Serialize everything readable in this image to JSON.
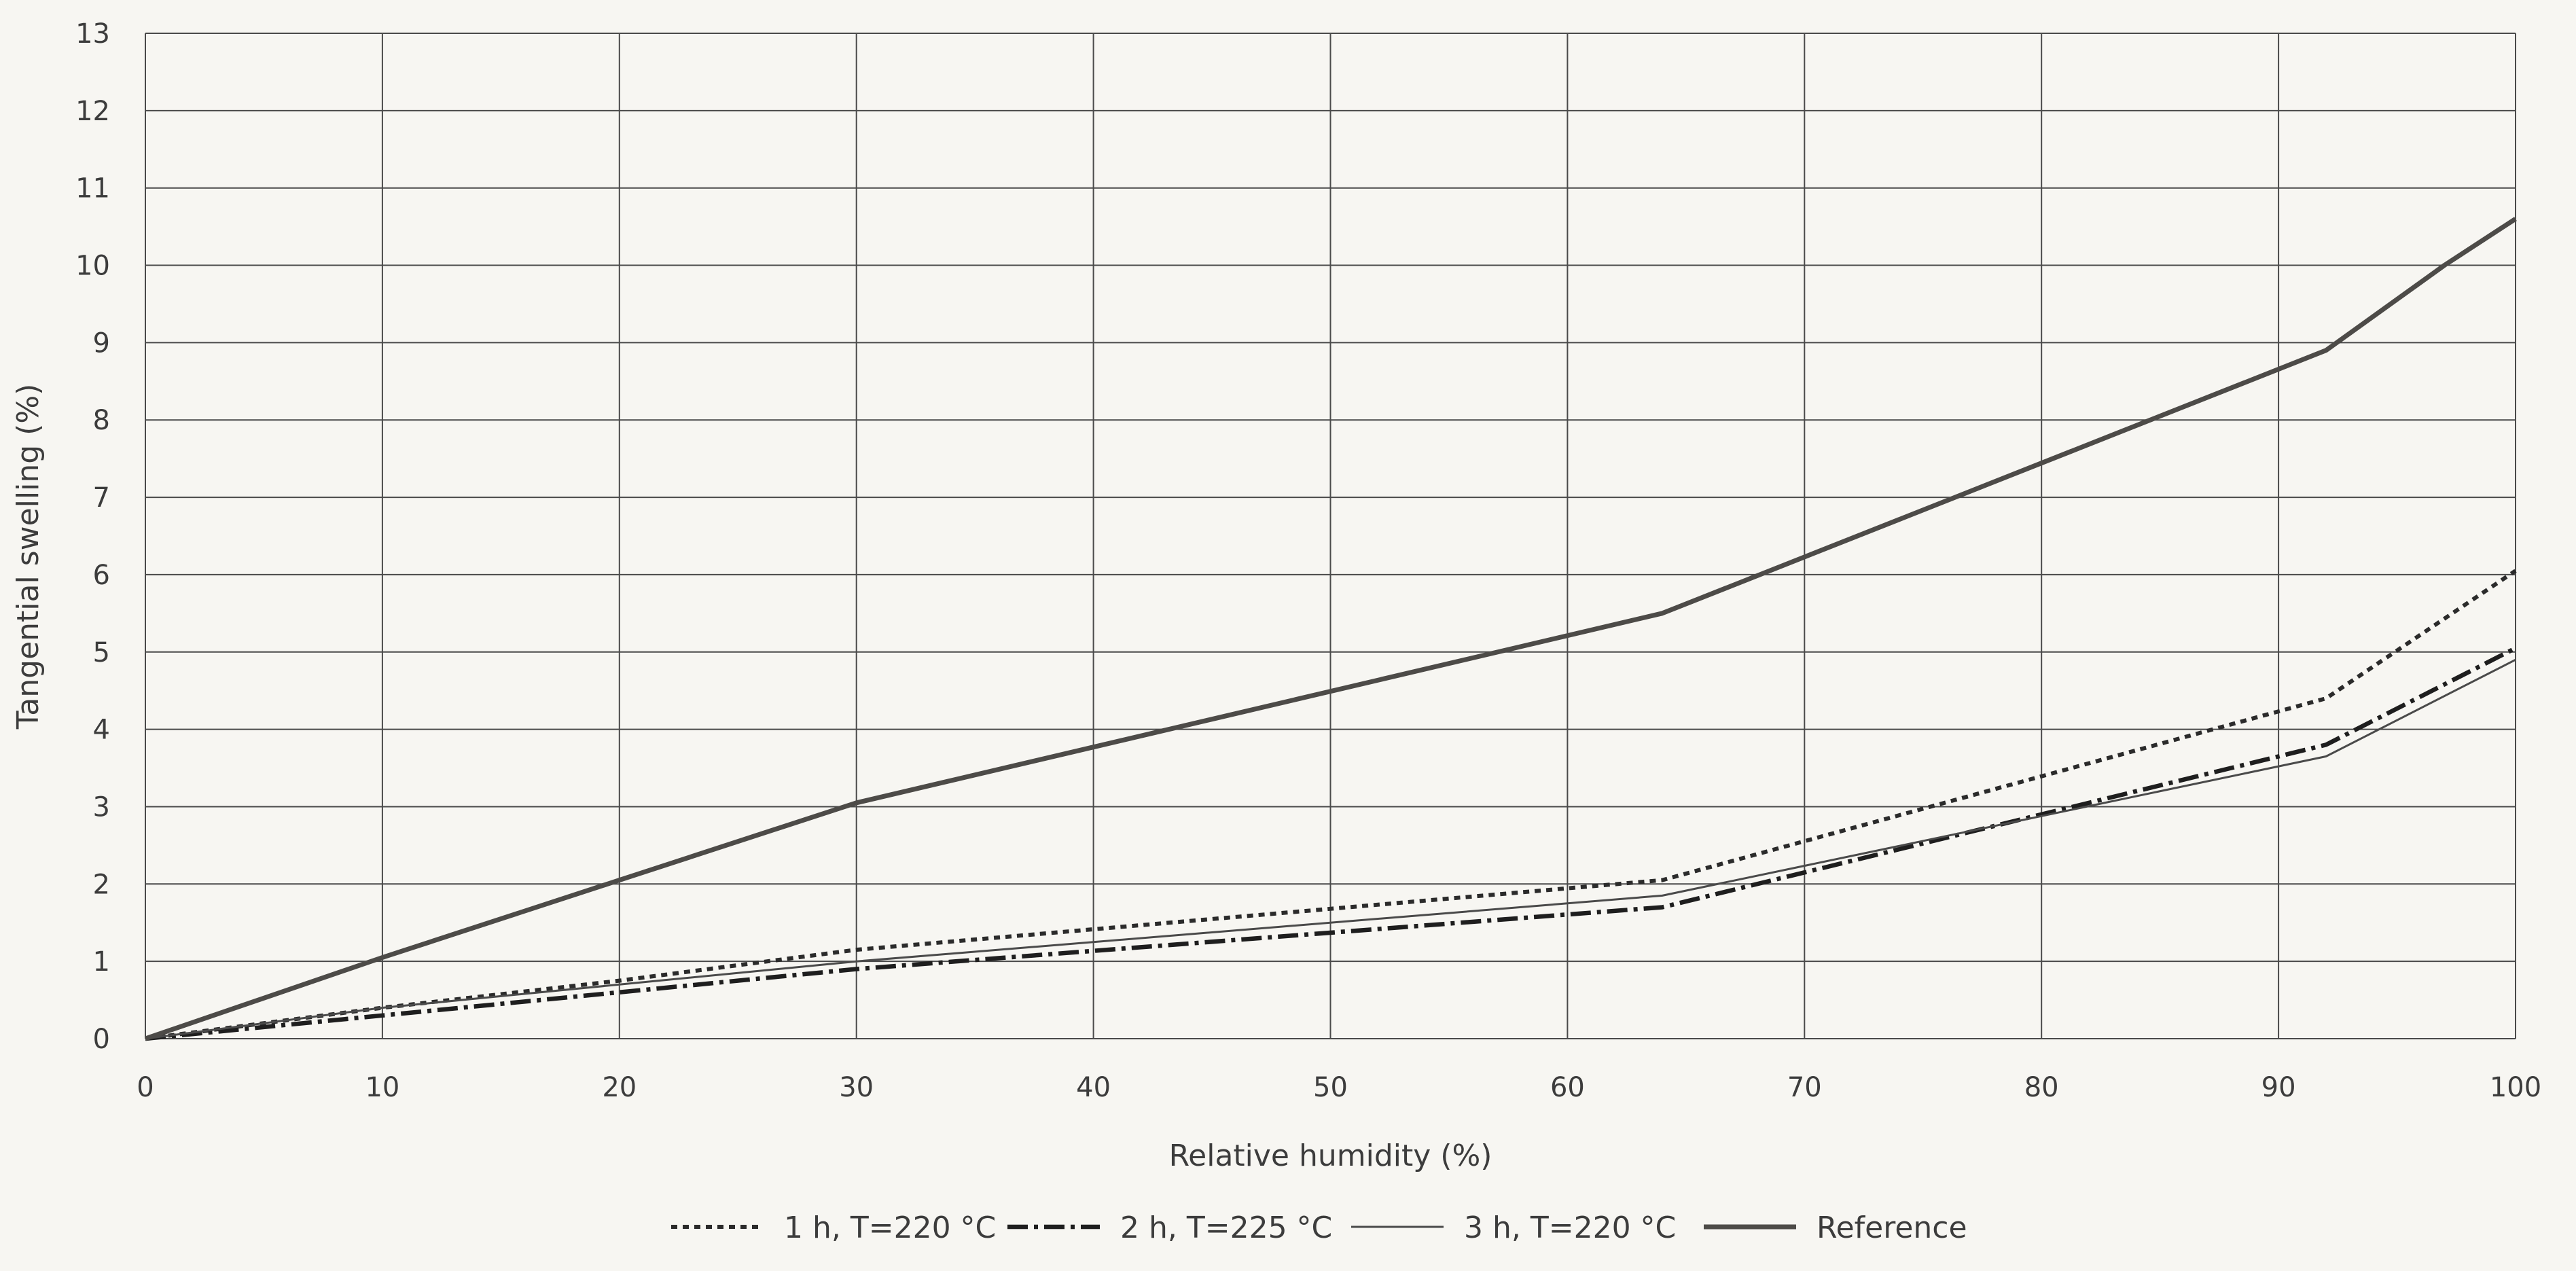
{
  "chart_data": {
    "type": "line",
    "title": "",
    "xlabel": "Relative humidity (%)",
    "ylabel": "Tangential swelling (%)",
    "xlim": [
      0,
      100
    ],
    "ylim": [
      0,
      13
    ],
    "x_ticks": [
      0,
      10,
      20,
      30,
      40,
      50,
      60,
      70,
      80,
      90,
      100
    ],
    "y_ticks": [
      0,
      1,
      2,
      3,
      4,
      5,
      6,
      7,
      8,
      9,
      10,
      11,
      12,
      13
    ],
    "grid": true,
    "legend_position": "bottom",
    "series": [
      {
        "name": "1 h, T=220 °C",
        "style": "dotted",
        "color": "#2b2b2b",
        "x": [
          0,
          10,
          20,
          30,
          64,
          92,
          100
        ],
        "y": [
          0,
          0.4,
          0.75,
          1.15,
          2.05,
          4.4,
          6.05
        ]
      },
      {
        "name": "2 h, T=225 °C",
        "style": "dash-dot",
        "color": "#1e1e1e",
        "x": [
          0,
          10,
          20,
          30,
          64,
          92,
          100
        ],
        "y": [
          0,
          0.3,
          0.6,
          0.9,
          1.7,
          3.8,
          5.05
        ]
      },
      {
        "name": "3 h, T=220 °C",
        "style": "thin",
        "color": "#4a4a4a",
        "x": [
          0,
          10,
          20,
          30,
          64,
          92,
          100
        ],
        "y": [
          0,
          0.4,
          0.7,
          1.0,
          1.85,
          3.65,
          4.9
        ]
      },
      {
        "name": "Reference",
        "style": "thick",
        "color": "#4d4b48",
        "x": [
          0,
          10,
          20,
          30,
          64,
          92,
          97,
          100
        ],
        "y": [
          0,
          1.05,
          2.05,
          3.05,
          5.5,
          8.9,
          10.0,
          10.6
        ]
      }
    ]
  }
}
